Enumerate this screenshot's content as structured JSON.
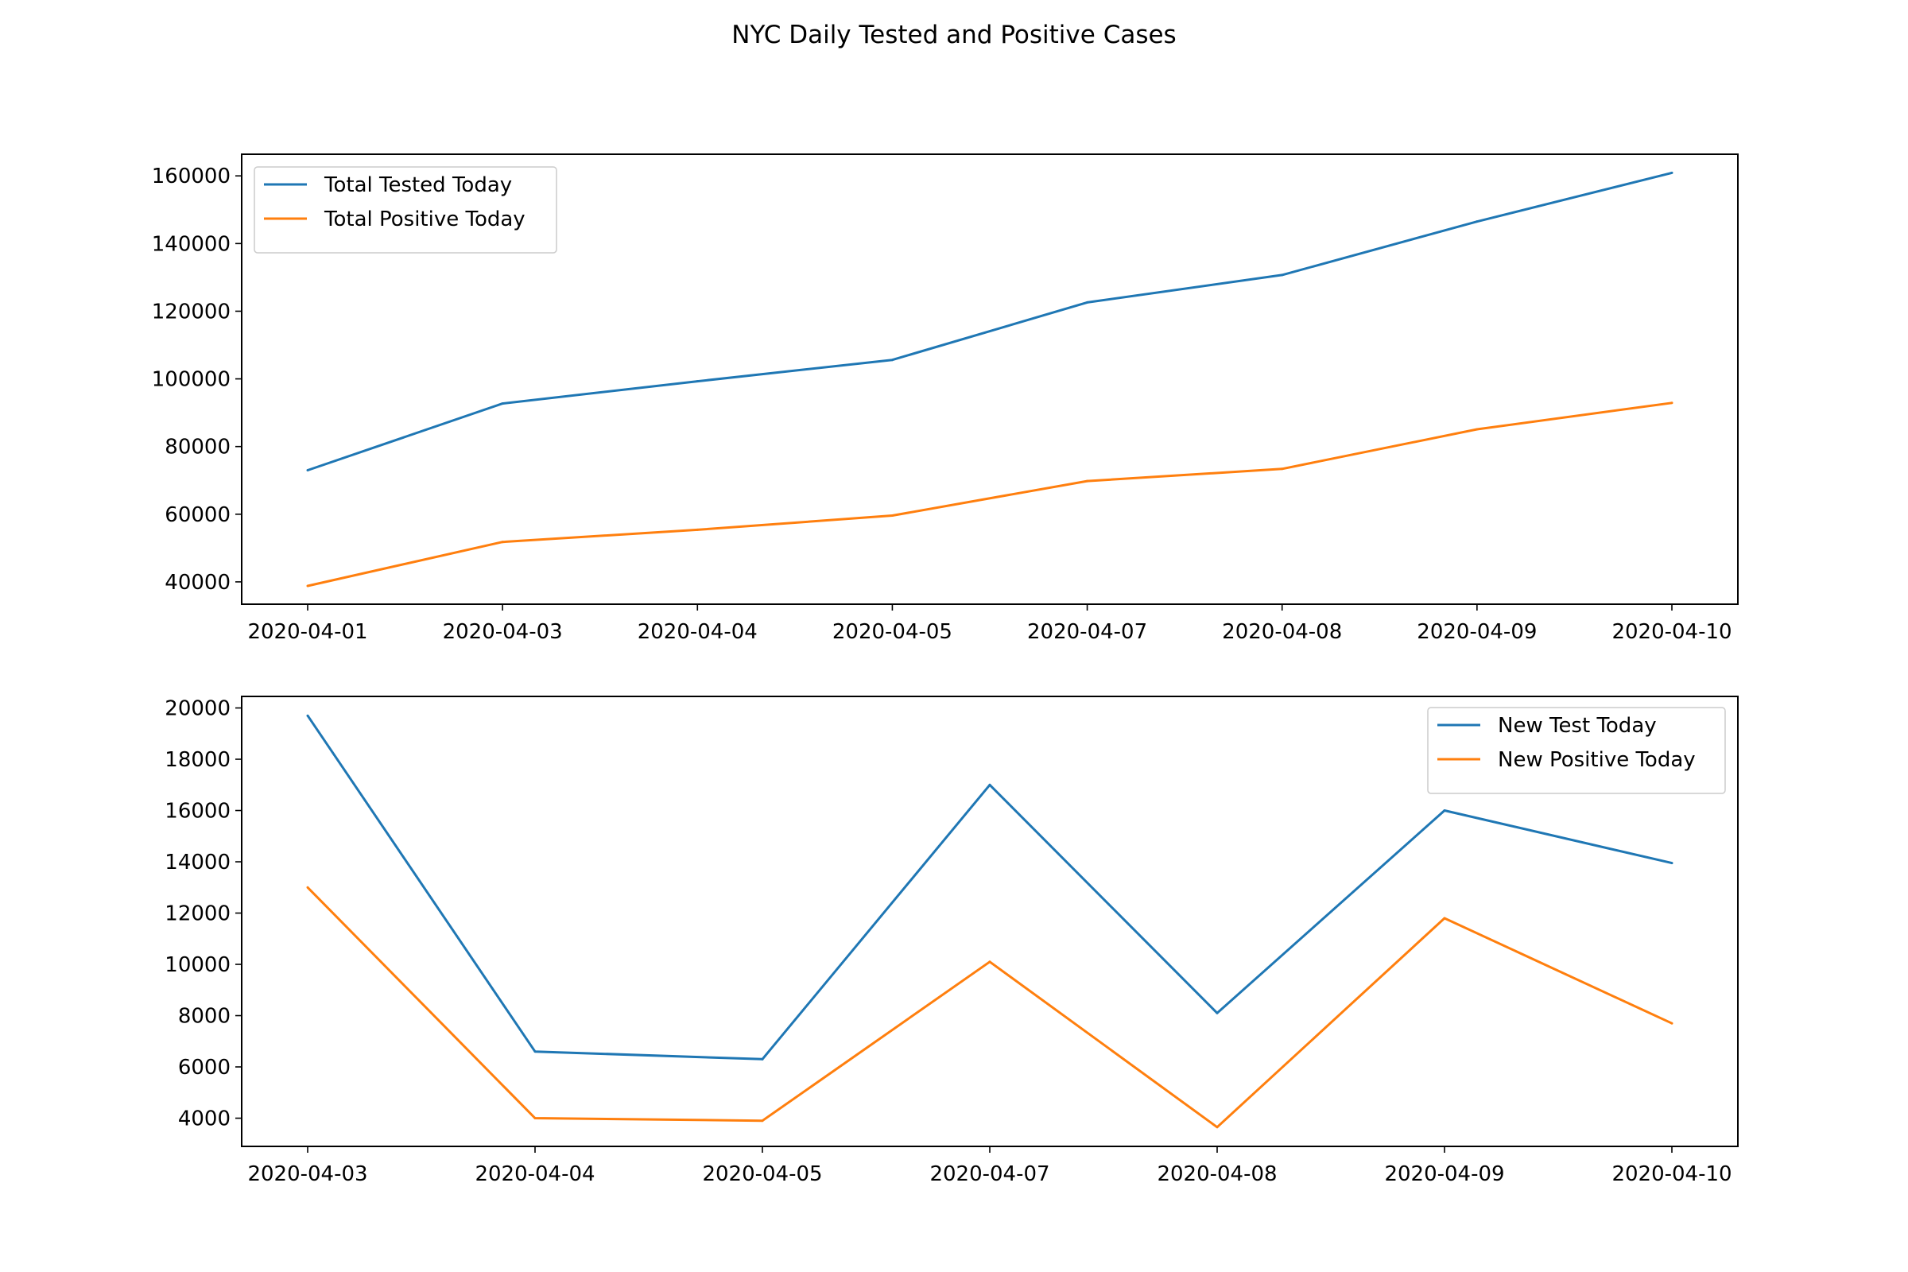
{
  "title": "NYC Daily Tested and Positive Cases",
  "chart_data": [
    {
      "type": "line",
      "categories": [
        "2020-04-01",
        "2020-04-03",
        "2020-04-04",
        "2020-04-05",
        "2020-04-07",
        "2020-04-08",
        "2020-04-09",
        "2020-04-10"
      ],
      "series": [
        {
          "name": "Total Tested Today",
          "color": "#1f77b4",
          "values": [
            73000,
            92700,
            99300,
            105600,
            122600,
            130700,
            146500,
            160900
          ]
        },
        {
          "name": "Total Positive Today",
          "color": "#ff7f0e",
          "values": [
            38800,
            51800,
            55400,
            59600,
            69800,
            73400,
            85100,
            92900
          ]
        }
      ],
      "xlabel": "",
      "ylabel": "",
      "ylim": [
        33400,
        166400
      ],
      "yticks": [
        40000,
        60000,
        80000,
        100000,
        120000,
        140000,
        160000
      ],
      "grid": false,
      "legend": "top-left"
    },
    {
      "type": "line",
      "categories": [
        "2020-04-03",
        "2020-04-04",
        "2020-04-05",
        "2020-04-07",
        "2020-04-08",
        "2020-04-09",
        "2020-04-10"
      ],
      "series": [
        {
          "name": "New Test Today",
          "color": "#1f77b4",
          "values": [
            19700,
            6600,
            6300,
            17000,
            8100,
            16000,
            13950
          ]
        },
        {
          "name": "New Positive Today",
          "color": "#ff7f0e",
          "values": [
            13000,
            4000,
            3900,
            10100,
            3650,
            11800,
            7700
          ]
        }
      ],
      "xlabel": "",
      "ylabel": "",
      "ylim": [
        2900,
        20450
      ],
      "yticks": [
        4000,
        6000,
        8000,
        10000,
        12000,
        14000,
        16000,
        18000,
        20000
      ],
      "grid": false,
      "legend": "top-right"
    }
  ]
}
